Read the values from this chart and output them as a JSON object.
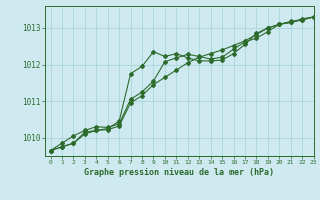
{
  "title": "Graphe pression niveau de la mer (hPa)",
  "bg_color": "#ceeaf0",
  "grid_color": "#a8d8d8",
  "line_color": "#2d6b2d",
  "xlim": [
    -0.5,
    23
  ],
  "ylim": [
    1009.5,
    1013.6
  ],
  "yticks": [
    1010,
    1011,
    1012,
    1013
  ],
  "xticks": [
    0,
    1,
    2,
    3,
    4,
    5,
    6,
    7,
    8,
    9,
    10,
    11,
    12,
    13,
    14,
    15,
    16,
    17,
    18,
    19,
    20,
    21,
    22,
    23
  ],
  "series": [
    [
      1009.65,
      1009.75,
      1009.85,
      1010.15,
      1010.2,
      1010.25,
      1010.45,
      1011.75,
      1011.95,
      1012.35,
      1012.22,
      1012.3,
      1012.18,
      1012.1,
      1012.1,
      1012.12,
      1012.3,
      1012.55,
      1012.85,
      1013.0,
      1013.1,
      1013.18,
      1013.22,
      1013.3
    ],
    [
      1009.65,
      1009.75,
      1009.85,
      1010.1,
      1010.2,
      1010.22,
      1010.32,
      1010.95,
      1011.15,
      1011.45,
      1011.65,
      1011.85,
      1012.05,
      1012.2,
      1012.3,
      1012.4,
      1012.52,
      1012.65,
      1012.82,
      1013.0,
      1013.1,
      1013.15,
      1013.22,
      1013.3
    ],
    [
      1009.65,
      1009.85,
      1010.05,
      1010.2,
      1010.3,
      1010.28,
      1010.38,
      1011.05,
      1011.25,
      1011.55,
      1012.08,
      1012.18,
      1012.28,
      1012.22,
      1012.15,
      1012.2,
      1012.42,
      1012.62,
      1012.72,
      1012.9,
      1013.1,
      1013.15,
      1013.25,
      1013.3
    ]
  ]
}
